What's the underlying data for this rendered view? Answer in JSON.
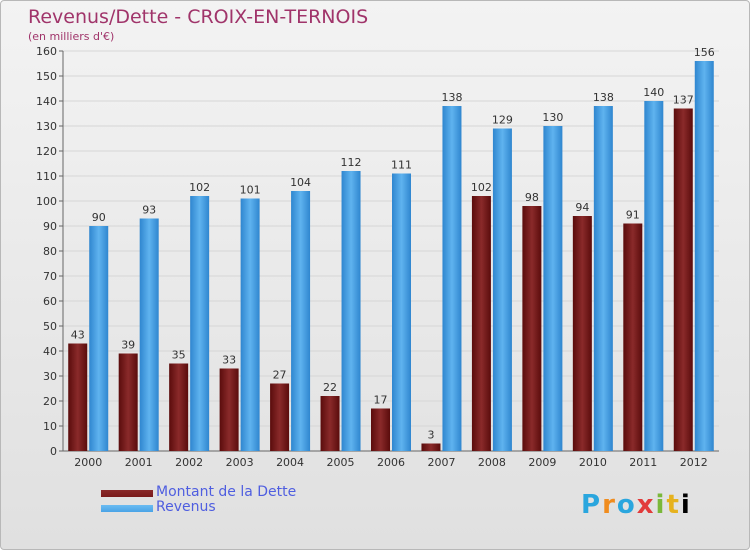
{
  "title": "Revenus/Dette - CROIX-EN-TERNOIS",
  "subtitle": "(en milliers d'€)",
  "logo_text": "Proxiti",
  "chart_data": {
    "type": "bar",
    "categories": [
      "2000",
      "2001",
      "2002",
      "2003",
      "2004",
      "2005",
      "2006",
      "2007",
      "2008",
      "2009",
      "2010",
      "2011",
      "2012"
    ],
    "series": [
      {
        "name": "Montant de la Dette",
        "color": "#7a1a1a",
        "values": [
          43,
          39,
          35,
          33,
          27,
          22,
          17,
          3,
          102,
          98,
          94,
          91,
          137
        ]
      },
      {
        "name": "Revenus",
        "color": "#4aa3e6",
        "values": [
          90,
          93,
          102,
          101,
          104,
          112,
          111,
          138,
          129,
          130,
          138,
          140,
          156
        ]
      }
    ],
    "ylim": [
      0,
      160
    ],
    "yticks": [
      0,
      10,
      20,
      30,
      40,
      50,
      60,
      70,
      80,
      90,
      100,
      110,
      120,
      130,
      140,
      150,
      160
    ],
    "grid": true,
    "legend_position": "bottom-left",
    "data_labels": true
  }
}
